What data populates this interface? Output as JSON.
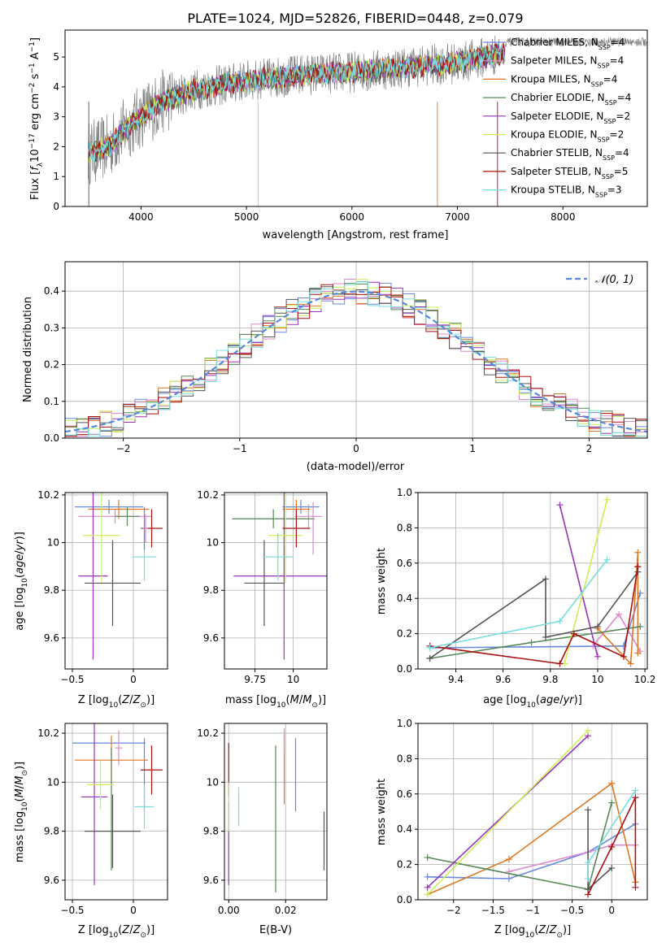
{
  "figure_title": "PLATE=1024, MJD=52826, FIBERID=0448, z=0.079",
  "colors": {
    "Chabrier MILES": "#6688dd",
    "Salpeter MILES": "#dd88cc",
    "Kroupa MILES": "#dd7722",
    "Chabrier ELODIE": "#558855",
    "Salpeter ELODIE": "#9933bb",
    "Kroupa ELODIE": "#ccee55",
    "Chabrier STELIB": "#555555",
    "Salpeter STELIB": "#aa1111",
    "Kroupa STELIB": "#77dddd",
    "data": "#808080",
    "gaussian": "#5588dd"
  },
  "chart_data": [
    {
      "id": "spectrum",
      "type": "line",
      "title": "PLATE=1024, MJD=52826, FIBERID=0448, z=0.079",
      "xlabel": "wavelength [Angstrom, rest frame]",
      "ylabel": "Flux [f_λ 10^-17 erg cm^-2 s^-1 A^-1]",
      "xlim": [
        3280,
        8800
      ],
      "ylim": [
        0,
        5.9
      ],
      "xticks": [
        4000,
        5000,
        6000,
        7000,
        8000
      ],
      "yticks": [
        0,
        1,
        2,
        3,
        4,
        5
      ],
      "legend_position": "upper-right",
      "continuum": {
        "x": [
          3500,
          3700,
          3850,
          4000,
          4200,
          4500,
          5000,
          5500,
          6000,
          6500,
          7000,
          7400
        ],
        "y": [
          1.8,
          2.0,
          2.6,
          3.0,
          3.5,
          3.9,
          4.2,
          4.4,
          4.5,
          4.65,
          4.8,
          5.1
        ]
      },
      "series": [
        {
          "name": "Chabrier MILES, N_SSP=4",
          "key": "Chabrier MILES"
        },
        {
          "name": "Salpeter MILES, N_SSP=4",
          "key": "Salpeter MILES"
        },
        {
          "name": "Kroupa MILES, N_SSP=4",
          "key": "Kroupa MILES"
        },
        {
          "name": "Chabrier ELODIE, N_SSP=4",
          "key": "Chabrier ELODIE"
        },
        {
          "name": "Salpeter ELODIE, N_SSP=2",
          "key": "Salpeter ELODIE"
        },
        {
          "name": "Kroupa ELODIE, N_SSP=2",
          "key": "Kroupa ELODIE"
        },
        {
          "name": "Chabrier STELIB, N_SSP=4",
          "key": "Chabrier STELIB"
        },
        {
          "name": "Salpeter STELIB, N_SSP=5",
          "key": "Salpeter STELIB"
        },
        {
          "name": "Kroupa STELIB, N_SSP=3",
          "key": "Kroupa STELIB"
        }
      ],
      "legend": [
        {
          "label": "Chabrier MILES, N",
          "sub": "SSP",
          "tail": "=4",
          "key": "Chabrier MILES"
        },
        {
          "label": "Salpeter MILES, N",
          "sub": "SSP",
          "tail": "=4",
          "key": "Salpeter MILES"
        },
        {
          "label": "Kroupa MILES, N",
          "sub": "SSP",
          "tail": "=4",
          "key": "Kroupa MILES"
        },
        {
          "label": "Chabrier ELODIE, N",
          "sub": "SSP",
          "tail": "=4",
          "key": "Chabrier ELODIE"
        },
        {
          "label": "Salpeter ELODIE, N",
          "sub": "SSP",
          "tail": "=2",
          "key": "Salpeter ELODIE"
        },
        {
          "label": "Kroupa ELODIE, N",
          "sub": "SSP",
          "tail": "=2",
          "key": "Kroupa ELODIE"
        },
        {
          "label": "Chabrier STELIB, N",
          "sub": "SSP",
          "tail": "=4",
          "key": "Chabrier STELIB"
        },
        {
          "label": "Salpeter STELIB, N",
          "sub": "SSP",
          "tail": "=5",
          "key": "Salpeter STELIB"
        },
        {
          "label": "Kroupa STELIB, N",
          "sub": "SSP",
          "tail": "=3",
          "key": "Kroupa STELIB"
        }
      ]
    },
    {
      "id": "residuals",
      "type": "bar",
      "xlabel": "(data-model)/error",
      "ylabel": "Normed distribution",
      "xlim": [
        -2.5,
        2.5
      ],
      "ylim": [
        0,
        0.48
      ],
      "xticks": [
        -2,
        -1,
        0,
        1,
        2
      ],
      "yticks": [
        0.0,
        0.1,
        0.2,
        0.3,
        0.4
      ],
      "grid": true,
      "legend_position": "upper-right",
      "legend_label": "𝒩(0, 1)",
      "bin_width": 0.1,
      "bin_start": -2.5,
      "gaussian_curve": {
        "mean": 0,
        "sigma": 1
      }
    },
    {
      "id": "age-vs-Z",
      "type": "scatter",
      "xlabel": "Z [log10(Z/Z⊙)]",
      "ylabel": "age  [log10(age/yr)]",
      "xlim": [
        -0.56,
        0.28
      ],
      "ylim": [
        9.47,
        10.21
      ],
      "xticks": [
        -0.5,
        0.0
      ],
      "yticks": [
        9.6,
        9.8,
        10.0,
        10.2
      ],
      "grid": true,
      "points": [
        {
          "key": "Chabrier MILES",
          "x": -0.2,
          "y": 10.15,
          "xerr": 0.28,
          "yerr": 0.03
        },
        {
          "key": "Salpeter MILES",
          "x": -0.15,
          "y": 10.11,
          "xerr": 0.3,
          "yerr": 0.03
        },
        {
          "key": "Kroupa MILES",
          "x": -0.12,
          "y": 10.14,
          "xerr": 0.25,
          "yerr": 0.04
        },
        {
          "key": "Chabrier ELODIE",
          "x": -0.05,
          "y": 10.11,
          "xerr": 0.1,
          "yerr": 0.04
        },
        {
          "key": "Salpeter ELODIE",
          "x": -0.33,
          "y": 9.86,
          "xerr": 0.12,
          "yerr": 0.35
        },
        {
          "key": "Kroupa ELODIE",
          "x": -0.26,
          "y": 10.03,
          "xerr": 0.15,
          "yerr": 0.2
        },
        {
          "key": "Chabrier STELIB",
          "x": -0.17,
          "y": 9.83,
          "xerr": 0.23,
          "yerr": 0.18
        },
        {
          "key": "Salpeter STELIB",
          "x": 0.15,
          "y": 10.06,
          "xerr": 0.09,
          "yerr": 0.08
        },
        {
          "key": "Kroupa STELIB",
          "x": 0.09,
          "y": 9.94,
          "xerr": 0.1,
          "yerr": 0.1
        },
        {
          "key": "Chabrier MILES",
          "x": 0.09,
          "y": 10.06,
          "xerr": 0.03,
          "yerr": 0.09
        },
        {
          "key": "Salpeter MILES",
          "x": 0.1,
          "y": 10.06,
          "xerr": 0.02,
          "yerr": 0.06
        }
      ]
    },
    {
      "id": "age-vs-mass",
      "type": "scatter",
      "xlabel": "mass [log10(M/M⊙)]",
      "ylabel": "",
      "xlim": [
        9.55,
        10.22
      ],
      "ylim": [
        9.47,
        10.21
      ],
      "xticks": [
        9.75,
        10.0
      ],
      "yticks": [
        9.6,
        9.8,
        10.0,
        10.2
      ],
      "grid": true,
      "points": [
        {
          "key": "Chabrier MILES",
          "x": 10.05,
          "y": 10.15,
          "xerr": 0.12,
          "yerr": 0.03
        },
        {
          "key": "Salpeter MILES",
          "x": 10.1,
          "y": 10.11,
          "xerr": 0.09,
          "yerr": 0.05
        },
        {
          "key": "Kroupa MILES",
          "x": 10.02,
          "y": 10.14,
          "xerr": 0.09,
          "yerr": 0.04
        },
        {
          "key": "Chabrier ELODIE",
          "x": 9.87,
          "y": 10.1,
          "xerr": 0.27,
          "yerr": 0.04
        },
        {
          "key": "Salpeter ELODIE",
          "x": 9.94,
          "y": 9.86,
          "xerr": 0.33,
          "yerr": 0.35
        },
        {
          "key": "Kroupa ELODIE",
          "x": 9.95,
          "y": 10.03,
          "xerr": 0.11,
          "yerr": 0.2
        },
        {
          "key": "Chabrier STELIB",
          "x": 9.81,
          "y": 9.83,
          "xerr": 0.13,
          "yerr": 0.18
        },
        {
          "key": "Salpeter STELIB",
          "x": 10.02,
          "y": 10.06,
          "xerr": 0.09,
          "yerr": 0.08
        },
        {
          "key": "Kroupa STELIB",
          "x": 9.9,
          "y": 9.94,
          "xerr": 0.1,
          "yerr": 0.1
        },
        {
          "key": "Salpeter MILES",
          "x": 10.13,
          "y": 10.06,
          "xerr": 0.0,
          "yerr": 0.11
        }
      ]
    },
    {
      "id": "weight-vs-age",
      "type": "line",
      "xlabel": "age  [log10(age/yr)]",
      "ylabel": "mass weight",
      "xlim": [
        9.24,
        10.21
      ],
      "ylim": [
        0,
        1.0
      ],
      "xticks": [
        9.4,
        9.6,
        9.8,
        10.0,
        10.2
      ],
      "yticks": [
        0.0,
        0.2,
        0.4,
        0.6,
        0.8,
        1.0
      ],
      "grid": true,
      "series": [
        {
          "key": "Chabrier MILES",
          "x": [
            9.29,
            10.11,
            10.18
          ],
          "y": [
            0.12,
            0.13,
            0.43
          ]
        },
        {
          "key": "Salpeter MILES",
          "x": [
            9.98,
            10.09,
            10.18
          ],
          "y": [
            0.13,
            0.31,
            0.1
          ]
        },
        {
          "key": "Kroupa MILES",
          "x": [
            10.0,
            10.14,
            10.17,
            10.17
          ],
          "y": [
            0.23,
            0.03,
            0.66,
            0.09
          ]
        },
        {
          "key": "Chabrier ELODIE",
          "x": [
            9.29,
            9.72,
            10.18
          ],
          "y": [
            0.06,
            0.15,
            0.24
          ]
        },
        {
          "key": "Salpeter ELODIE",
          "x": [
            9.84,
            10.0
          ],
          "y": [
            0.93,
            0.07
          ]
        },
        {
          "key": "Kroupa ELODIE",
          "x": [
            9.86,
            10.04
          ],
          "y": [
            0.03,
            0.96
          ]
        },
        {
          "key": "Chabrier STELIB",
          "x": [
            9.29,
            9.78,
            9.78,
            10.0,
            10.17
          ],
          "y": [
            0.06,
            0.51,
            0.18,
            0.24,
            0.55
          ]
        },
        {
          "key": "Salpeter STELIB",
          "x": [
            9.29,
            9.84,
            9.9,
            10.11,
            10.17,
            10.17
          ],
          "y": [
            0.13,
            0.03,
            0.2,
            0.07,
            0.58,
            0.58
          ]
        },
        {
          "key": "Kroupa STELIB",
          "x": [
            9.29,
            9.84,
            10.04
          ],
          "y": [
            0.12,
            0.27,
            0.62
          ]
        }
      ]
    },
    {
      "id": "mass-vs-Z",
      "type": "scatter",
      "xlabel": "Z [log10(Z/Z⊙)]",
      "ylabel": "mass [log10(M/M⊙)]",
      "xlim": [
        -0.56,
        0.28
      ],
      "ylim": [
        9.52,
        10.24
      ],
      "xticks": [
        -0.5,
        0.0
      ],
      "yticks": [
        9.6,
        9.8,
        10.0,
        10.2
      ],
      "grid": true,
      "points": [
        {
          "key": "Chabrier MILES",
          "x": -0.2,
          "y": 10.16,
          "xerr": 0.3,
          "yerr": 0.0
        },
        {
          "key": "Chabrier MILES",
          "x": 0.09,
          "y": 10.03,
          "xerr": 0.0,
          "yerr": 0.15
        },
        {
          "key": "Salpeter MILES",
          "x": -0.12,
          "y": 10.14,
          "xerr": 0.03,
          "yerr": 0.07
        },
        {
          "key": "Kroupa MILES",
          "x": -0.18,
          "y": 10.09,
          "xerr": 0.3,
          "yerr": 0.1
        },
        {
          "key": "Chabrier ELODIE",
          "x": -0.18,
          "y": 9.89,
          "xerr": 0.0,
          "yerr": 0.25
        },
        {
          "key": "Salpeter ELODIE",
          "x": -0.32,
          "y": 9.94,
          "xerr": 0.11,
          "yerr": 0.36
        },
        {
          "key": "Kroupa ELODIE",
          "x": -0.27,
          "y": 9.99,
          "xerr": 0.11,
          "yerr": 0.1
        },
        {
          "key": "Chabrier STELIB",
          "x": -0.17,
          "y": 9.8,
          "xerr": 0.23,
          "yerr": 0.15
        },
        {
          "key": "Salpeter STELIB",
          "x": 0.15,
          "y": 10.05,
          "xerr": 0.09,
          "yerr": 0.1
        },
        {
          "key": "Kroupa STELIB",
          "x": 0.09,
          "y": 9.9,
          "xerr": 0.08,
          "yerr": 0.09
        }
      ]
    },
    {
      "id": "mass-vs-EBV",
      "type": "scatter",
      "xlabel": "E(B-V)",
      "ylabel": "",
      "xlim": [
        -0.0015,
        0.0345
      ],
      "ylim": [
        9.52,
        10.24
      ],
      "xticks": [
        0.0,
        0.02
      ],
      "xticklabels": [
        "0.00",
        "0.02"
      ],
      "yticks": [
        9.6,
        9.8,
        10.0,
        10.2
      ],
      "grid": true,
      "points": [
        {
          "key": "Salpeter STELIB",
          "x": 0.0,
          "y": 10.05,
          "xerr": 0.0,
          "yerr": 0.11
        },
        {
          "key": "Salpeter ELODIE",
          "x": 0.0,
          "y": 9.75,
          "xerr": 0.0,
          "yerr": 0.17
        },
        {
          "key": "Kroupa ELODIE",
          "x": 0.0,
          "y": 9.9,
          "xerr": 0.0,
          "yerr": 0.1
        },
        {
          "key": "Kroupa STELIB",
          "x": 0.0035,
          "y": 9.9,
          "xerr": 0.0,
          "yerr": 0.08
        },
        {
          "key": "Chabrier ELODIE",
          "x": 0.0165,
          "y": 9.85,
          "xerr": 0.0,
          "yerr": 0.3
        },
        {
          "key": "Kroupa MILES",
          "x": 0.0195,
          "y": 10.05,
          "xerr": 0.0,
          "yerr": 0.14
        },
        {
          "key": "Salpeter MILES",
          "x": 0.0195,
          "y": 10.17,
          "xerr": 0.0,
          "yerr": 0.05
        },
        {
          "key": "Chabrier MILES",
          "x": 0.0235,
          "y": 10.03,
          "xerr": 0.0,
          "yerr": 0.15
        },
        {
          "key": "Chabrier STELIB",
          "x": 0.0335,
          "y": 9.76,
          "xerr": 0.0,
          "yerr": 0.12
        }
      ]
    },
    {
      "id": "weight-vs-Z",
      "type": "line",
      "xlabel": "Z [log10(Z/Z⊙)]",
      "ylabel": "mass weight",
      "xlim": [
        -2.45,
        0.45
      ],
      "ylim": [
        0,
        1.0
      ],
      "xticks": [
        -2.0,
        -1.5,
        -1.0,
        -0.5,
        0.0
      ],
      "yticks": [
        0.0,
        0.2,
        0.4,
        0.6,
        0.8,
        1.0
      ],
      "grid": true,
      "series": [
        {
          "key": "Chabrier MILES",
          "x": [
            -2.33,
            -1.3,
            -0.3,
            0.3
          ],
          "y": [
            0.13,
            0.12,
            0.27,
            0.43
          ]
        },
        {
          "key": "Salpeter MILES",
          "x": [
            -1.3,
            -0.3,
            0.0,
            0.3
          ],
          "y": [
            0.16,
            0.27,
            0.31,
            0.31
          ]
        },
        {
          "key": "Kroupa MILES",
          "x": [
            -2.33,
            -1.3,
            0.0,
            0.3,
            0.3
          ],
          "y": [
            0.03,
            0.23,
            0.66,
            0.1,
            0.1
          ]
        },
        {
          "key": "Chabrier ELODIE",
          "x": [
            -2.33,
            -0.3,
            0.0
          ],
          "y": [
            0.24,
            0.06,
            0.55
          ]
        },
        {
          "key": "Salpeter ELODIE",
          "x": [
            -2.33,
            -0.3
          ],
          "y": [
            0.07,
            0.93
          ]
        },
        {
          "key": "Kroupa ELODIE",
          "x": [
            -2.33,
            -0.3
          ],
          "y": [
            0.03,
            0.96
          ]
        },
        {
          "key": "Chabrier STELIB",
          "x": [
            -0.3,
            -0.3,
            0.0
          ],
          "y": [
            0.51,
            0.06,
            0.18
          ]
        },
        {
          "key": "Salpeter STELIB",
          "x": [
            -0.3,
            0.0,
            0.3,
            0.3
          ],
          "y": [
            0.03,
            0.3,
            0.58,
            0.07
          ]
        },
        {
          "key": "Kroupa STELIB",
          "x": [
            -0.3,
            -0.3,
            0.3
          ],
          "y": [
            0.12,
            0.21,
            0.62
          ]
        }
      ]
    }
  ]
}
